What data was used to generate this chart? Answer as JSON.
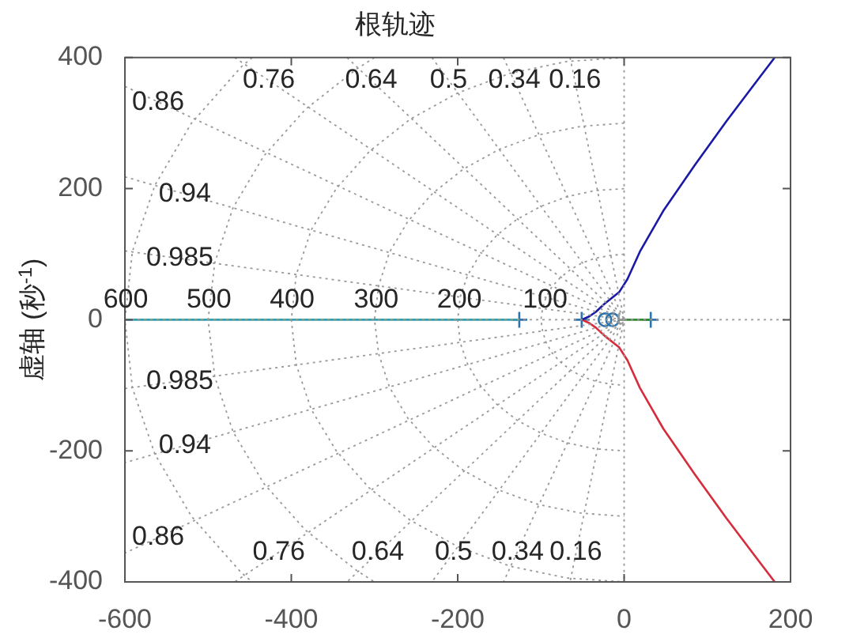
{
  "chart_data": {
    "type": "line",
    "title": "根轨迹",
    "ylabel": "虚轴 (秒$^{-1}$)",
    "xlim": [
      -600,
      200
    ],
    "xticks": [
      -600,
      -400,
      -200,
      0,
      200
    ],
    "ylim": [
      -400,
      400
    ],
    "yticks": [
      -400,
      -200,
      0,
      200,
      400
    ],
    "legend": false,
    "series": [
      {
        "color": "#999999",
        "line_style": "dotted",
        "x": [
          0,
          0
        ],
        "values": [
          400,
          -400
        ]
      },
      {
        "color": "#999999",
        "line_style": "dotted",
        "x": [
          -600,
          200
        ],
        "values": [
          0,
          0
        ]
      },
      {
        "color": "#999999",
        "line_style": "dotted",
        "x": [
          -65,
          0,
          -65
        ],
        "values": [
          400,
          0,
          -400
        ]
      },
      {
        "color": "#999999",
        "line_style": "dotted",
        "x": [
          -145,
          0,
          -145
        ],
        "values": [
          400,
          0,
          -400
        ]
      },
      {
        "color": "#999999",
        "line_style": "dotted",
        "x": [
          -231,
          0,
          -231
        ],
        "values": [
          400,
          0,
          -400
        ]
      },
      {
        "color": "#999999",
        "line_style": "dotted",
        "x": [
          -333,
          0,
          -333
        ],
        "values": [
          400,
          0,
          -400
        ]
      },
      {
        "color": "#999999",
        "line_style": "dotted",
        "x": [
          -468,
          0,
          -468
        ],
        "values": [
          400,
          0,
          -400
        ]
      },
      {
        "color": "#999999",
        "line_style": "dotted",
        "x": [
          -600,
          0,
          -600
        ],
        "values": [
          356,
          0,
          -356
        ]
      },
      {
        "color": "#999999",
        "line_style": "dotted",
        "x": [
          -600,
          0,
          -600
        ],
        "values": [
          218,
          0,
          -218
        ]
      },
      {
        "color": "#999999",
        "line_style": "dotted",
        "x": [
          -600,
          0,
          -600
        ],
        "values": [
          105,
          0,
          -105
        ]
      },
      {
        "color": "#999999",
        "line_style": "dotted",
        "x": [
          0,
          -17,
          -34,
          -50,
          -64,
          -77,
          -87,
          -94,
          -98,
          -100,
          -98,
          -94,
          -87,
          -77,
          -64,
          -50,
          -34,
          -17,
          0
        ],
        "values": [
          100,
          98,
          94,
          87,
          77,
          64,
          50,
          34,
          17,
          0,
          -17,
          -34,
          -50,
          -64,
          -77,
          -87,
          -94,
          -98,
          -100
        ]
      },
      {
        "color": "#999999",
        "line_style": "dotted",
        "x": [
          0,
          -35,
          -68,
          -100,
          -129,
          -153,
          -173,
          -188,
          -197,
          -200,
          -197,
          -188,
          -173,
          -153,
          -129,
          -100,
          -68,
          -35,
          0
        ],
        "values": [
          200,
          197,
          188,
          173,
          153,
          129,
          100,
          68,
          35,
          0,
          -35,
          -68,
          -100,
          -129,
          -153,
          -173,
          -188,
          -197,
          -200
        ]
      },
      {
        "color": "#999999",
        "line_style": "dotted",
        "x": [
          0,
          -52,
          -103,
          -150,
          -193,
          -230,
          -260,
          -282,
          -295,
          -300,
          -295,
          -282,
          -260,
          -230,
          -193,
          -150,
          -103,
          -52,
          0
        ],
        "values": [
          300,
          295,
          282,
          260,
          230,
          193,
          150,
          103,
          52,
          0,
          -52,
          -103,
          -150,
          -193,
          -230,
          -260,
          -282,
          -295,
          -300
        ]
      },
      {
        "color": "#999999",
        "line_style": "dotted",
        "x": [
          0,
          -69,
          -137,
          -200,
          -257,
          -306,
          -346,
          -376,
          -394,
          -400,
          -394,
          -376,
          -346,
          -306,
          -257,
          -200,
          -137,
          -69,
          0
        ],
        "values": [
          400,
          394,
          376,
          346,
          306,
          257,
          200,
          137,
          69,
          0,
          -69,
          -137,
          -200,
          -257,
          -306,
          -346,
          -376,
          -394,
          -400
        ]
      },
      {
        "color": "#999999",
        "line_style": "dotted",
        "x": [
          -300,
          -321,
          -383,
          -433,
          -470,
          -492,
          -500,
          -492,
          -470,
          -433,
          -383,
          -321,
          -300
        ],
        "values": [
          400,
          383,
          321,
          250,
          171,
          87,
          0,
          -87,
          -171,
          -250,
          -321,
          -383,
          -400
        ]
      },
      {
        "color": "#999999",
        "line_style": "dotted",
        "x": [
          -447,
          -460,
          -520,
          -564,
          -591,
          -600,
          -591,
          -564,
          -520,
          -460,
          -447
        ],
        "values": [
          400,
          386,
          300,
          205,
          104,
          0,
          -104,
          -205,
          -300,
          -386,
          -400
        ]
      },
      {
        "color": "#2ba3b0",
        "x": [
          -600,
          -126
        ],
        "values": [
          0,
          0
        ]
      },
      {
        "color": "#1a1aa6",
        "x": [
          -51,
          -42,
          -34,
          -23,
          -6,
          4,
          19,
          47,
          85,
          123,
          160,
          181
        ],
        "values": [
          0,
          5,
          12,
          25,
          42,
          62,
          104,
          166,
          236,
          303,
          365,
          400
        ]
      },
      {
        "color": "#d62c3c",
        "x": [
          -51,
          -42,
          -34,
          -23,
          -6,
          4,
          19,
          47,
          85,
          123,
          160,
          181
        ],
        "values": [
          0,
          -5,
          -12,
          -25,
          -42,
          -62,
          -104,
          -166,
          -236,
          -303,
          -365,
          -400
        ]
      },
      {
        "color": "#2e8b2e",
        "x": [
          -5,
          32
        ],
        "values": [
          0,
          0
        ]
      },
      {
        "type": "scatter",
        "marker": "cross",
        "color": "#2a74b0",
        "x": [
          -126,
          -51,
          32
        ],
        "values": [
          0,
          0,
          0
        ]
      },
      {
        "type": "scatter",
        "marker": "circle",
        "color": "#2a74b0",
        "x": [
          -23,
          -14
        ],
        "values": [
          0,
          0
        ]
      }
    ],
    "annotations": [
      {
        "text": "0.86",
        "x": -560,
        "y": 332
      },
      {
        "text": "0.76",
        "x": -427,
        "y": 365
      },
      {
        "text": "0.64",
        "x": -304,
        "y": 365
      },
      {
        "text": "0.5",
        "x": -211,
        "y": 365
      },
      {
        "text": "0.34",
        "x": -132,
        "y": 365
      },
      {
        "text": "0.16",
        "x": -59,
        "y": 365
      },
      {
        "text": "0.94",
        "x": -528,
        "y": 192
      },
      {
        "text": "0.985",
        "x": -534,
        "y": 94
      },
      {
        "text": "0.86",
        "x": -560,
        "y": -332
      },
      {
        "text": "0.76",
        "x": -415,
        "y": -355
      },
      {
        "text": "0.64",
        "x": -296,
        "y": -355
      },
      {
        "text": "0.5",
        "x": -205,
        "y": -355
      },
      {
        "text": "0.34",
        "x": -128,
        "y": -355
      },
      {
        "text": "0.16",
        "x": -58,
        "y": -355
      },
      {
        "text": "0.94",
        "x": -528,
        "y": -192
      },
      {
        "text": "0.985",
        "x": -534,
        "y": -94
      },
      {
        "text": "600",
        "x": -599,
        "y": 30
      },
      {
        "text": "500",
        "x": -499,
        "y": 30
      },
      {
        "text": "400",
        "x": -399,
        "y": 30
      },
      {
        "text": "300",
        "x": -298,
        "y": 30
      },
      {
        "text": "200",
        "x": -198,
        "y": 30
      },
      {
        "text": "100",
        "x": -95,
        "y": 30
      }
    ]
  }
}
